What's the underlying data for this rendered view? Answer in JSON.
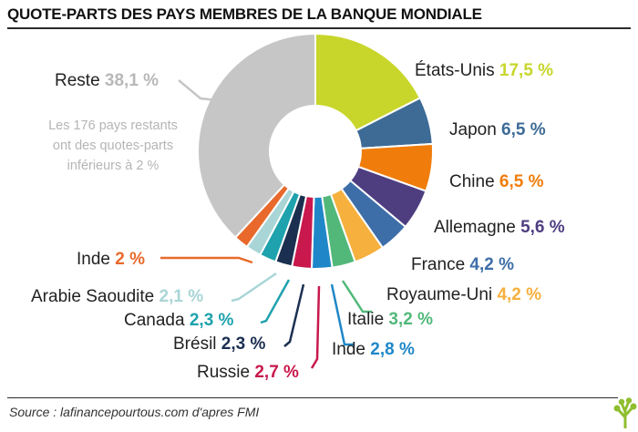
{
  "header": {
    "title": "QUOTE-PARTS DES PAYS MEMBRES DE LA BANQUE MONDIALE"
  },
  "chart_data": {
    "type": "pie",
    "title": "QUOTE-PARTS DES PAYS MEMBRES DE LA BANQUE MONDIALE",
    "unit": "%",
    "slices": [
      {
        "name": "États-Unis",
        "value": 17.5,
        "display": "17,5 %",
        "color": "#c8d62b",
        "textColor": "#c8d62b"
      },
      {
        "name": "Japon",
        "value": 6.5,
        "display": "6,5 %",
        "color": "#3d6b96",
        "textColor": "#3d6b96"
      },
      {
        "name": "Chine",
        "value": 6.5,
        "display": "6,5 %",
        "color": "#f07d0b",
        "textColor": "#f07d0b"
      },
      {
        "name": "Allemagne",
        "value": 5.6,
        "display": "5,6 %",
        "color": "#4e3e80",
        "textColor": "#4e3e80"
      },
      {
        "name": "France",
        "value": 4.2,
        "display": "4,2 %",
        "color": "#3e6ea8",
        "textColor": "#3e6ea8"
      },
      {
        "name": "Royaume-Uni",
        "value": 4.2,
        "display": "4,2 %",
        "color": "#f6b03d",
        "textColor": "#f6b03d"
      },
      {
        "name": "Italie",
        "value": 3.2,
        "display": "3,2 %",
        "color": "#52b87a",
        "textColor": "#52b87a"
      },
      {
        "name": "Inde",
        "value": 2.8,
        "display": "2,8 %",
        "color": "#1f87c8",
        "textColor": "#1f87c8"
      },
      {
        "name": "Russie",
        "value": 2.7,
        "display": "2,7 %",
        "color": "#c8184c",
        "textColor": "#c8184c"
      },
      {
        "name": "Brésil",
        "value": 2.3,
        "display": "2,3 %",
        "color": "#1b2f50",
        "textColor": "#1b2f50"
      },
      {
        "name": "Canada",
        "value": 2.3,
        "display": "2,3 %",
        "color": "#1ea2ad",
        "textColor": "#1ea2ad"
      },
      {
        "name": "Arabie Saoudite",
        "value": 2.1,
        "display": "2,1 %",
        "color": "#a9d5d6",
        "textColor": "#a9d5d6"
      },
      {
        "name": "Inde",
        "value": 2.0,
        "display": "2 %",
        "color": "#e8692b",
        "textColor": "#e8692b"
      },
      {
        "name": "Reste",
        "value": 38.1,
        "display": "38,1 %",
        "color": "#c6c6c6",
        "textColor": "#b8b8b8",
        "note": [
          "Les 176 pays restants",
          "ont des quotes-parts",
          "inférieurs à 2 %"
        ]
      }
    ]
  },
  "footer": {
    "source": "Source : lafinancepourtous.com d'apres FMI"
  },
  "logo": {
    "icon": "tree-logo-icon",
    "color": "#8fbe2f"
  }
}
